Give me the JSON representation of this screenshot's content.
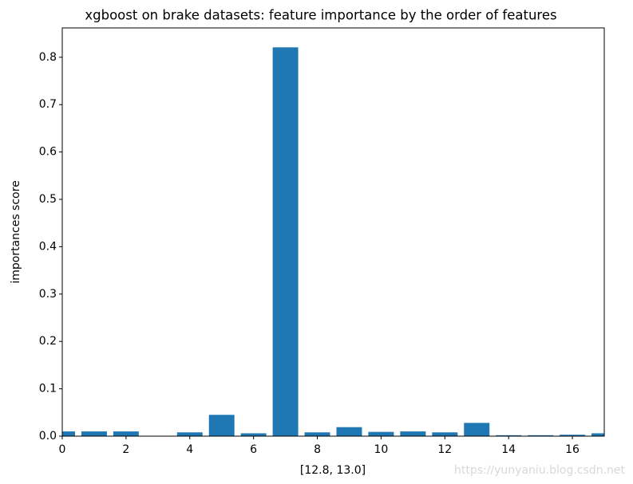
{
  "chart_data": {
    "type": "bar",
    "title": "xgboost on brake datasets: feature importance by the order of features",
    "x_label": "[12.8, 13.0]",
    "y_label": "importances score",
    "watermark": "https://yunyaniu.blog.csdn.net",
    "x": [
      0,
      1,
      2,
      3,
      4,
      5,
      6,
      7,
      8,
      9,
      10,
      11,
      12,
      13,
      14,
      15,
      16,
      17
    ],
    "values": [
      0.01,
      0.01,
      0.01,
      0,
      0.008,
      0.045,
      0.006,
      0.821,
      0.008,
      0.019,
      0.009,
      0.01,
      0.008,
      0.028,
      0.002,
      0.002,
      0.003,
      0.006
    ],
    "color": "#1f77b4",
    "xlim": [
      0,
      17
    ],
    "ylim": [
      0,
      0.862
    ],
    "xticks": [
      0,
      2,
      4,
      6,
      8,
      10,
      12,
      14,
      16
    ],
    "yticks": [
      {
        "value": 0,
        "label": "0.0"
      },
      0.1,
      0.2,
      0.3,
      0.4,
      0.5,
      0.6,
      0.7,
      0.8
    ]
  }
}
